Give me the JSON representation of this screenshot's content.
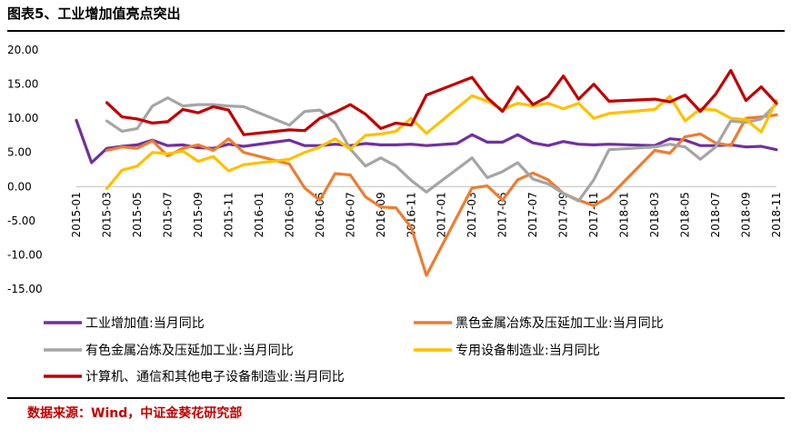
{
  "header": {
    "title": "图表5、工业增加值亮点突出"
  },
  "footer": {
    "source": "数据来源：Wind，中证金葵花研究部"
  },
  "chart_data": {
    "type": "line",
    "ylim": [
      -15,
      20
    ],
    "yticks": [
      "20.00",
      "15.00",
      "10.00",
      "5.00",
      "0.00",
      "-5.00",
      "-10.00",
      "-15.00"
    ],
    "x": [
      "2015-01",
      "2015-02",
      "2015-03",
      "2015-04",
      "2015-05",
      "2015-06",
      "2015-07",
      "2015-08",
      "2015-09",
      "2015-10",
      "2015-11",
      "2015-12",
      "2016-01",
      "2016-02",
      "2016-03",
      "2016-04",
      "2016-05",
      "2016-06",
      "2016-07",
      "2016-08",
      "2016-09",
      "2016-10",
      "2016-11",
      "2016-12",
      "2017-01",
      "2017-02",
      "2017-03",
      "2017-04",
      "2017-05",
      "2017-06",
      "2017-07",
      "2017-08",
      "2017-09",
      "2017-10",
      "2017-11",
      "2017-12",
      "2018-01",
      "2018-02",
      "2018-03",
      "2018-04",
      "2018-05",
      "2018-06",
      "2018-07",
      "2018-08",
      "2018-09",
      "2018-10",
      "2018-11"
    ],
    "xticklabels": [
      "2015-01",
      "2015-03",
      "2015-05",
      "2015-07",
      "2015-09",
      "2015-11",
      "2016-01",
      "2016-03",
      "2016-05",
      "2016-07",
      "2016-09",
      "2016-11",
      "2017-01",
      "2017-03",
      "2017-05",
      "2017-07",
      "2017-09",
      "2017-11",
      "2018-01",
      "2018-03",
      "2018-05",
      "2018-07",
      "2018-09",
      "2018-11"
    ],
    "series": [
      {
        "name": "工业增加值:当月同比",
        "color": "#7030a0",
        "values": [
          9.7,
          3.5,
          5.6,
          5.9,
          6.1,
          6.8,
          6.0,
          6.1,
          5.7,
          5.6,
          6.2,
          5.9,
          null,
          null,
          6.8,
          6.0,
          6.0,
          6.2,
          6.0,
          6.3,
          6.1,
          6.1,
          6.2,
          6.0,
          null,
          6.3,
          7.6,
          6.5,
          6.5,
          7.6,
          6.4,
          6.0,
          6.6,
          6.2,
          6.1,
          6.2,
          null,
          null,
          6.0,
          7.0,
          6.8,
          6.0,
          6.0,
          6.1,
          5.8,
          5.9,
          5.4
        ]
      },
      {
        "name": "黑色金属冶炼及压延加工业:当月同比",
        "color": "#ed7d31",
        "values": [
          null,
          null,
          5.3,
          5.8,
          5.6,
          6.7,
          4.5,
          5.6,
          6.1,
          5.3,
          7.0,
          5.0,
          null,
          null,
          3.3,
          -0.2,
          -2.0,
          1.9,
          1.7,
          -1.5,
          -3.0,
          -3.1,
          -6.0,
          -13.0,
          null,
          null,
          -0.2,
          0.1,
          -2.0,
          1.0,
          2.0,
          1.0,
          -1.0,
          -2.0,
          -2.8,
          -1.5,
          null,
          null,
          5.3,
          4.9,
          7.3,
          7.7,
          6.4,
          6.0,
          10.0,
          10.2,
          10.5
        ]
      },
      {
        "name": "有色金属冶炼及压延加工业:当月同比",
        "color": "#a5a5a5",
        "values": [
          null,
          null,
          9.6,
          8.1,
          8.5,
          11.8,
          13.0,
          11.8,
          12.0,
          12.0,
          11.8,
          11.7,
          null,
          null,
          9.0,
          11.0,
          11.2,
          9.3,
          5.5,
          3.0,
          4.2,
          3.0,
          0.9,
          -0.8,
          null,
          null,
          4.2,
          1.3,
          2.2,
          3.5,
          1.1,
          0.4,
          -1.0,
          -2.1,
          1.0,
          5.4,
          null,
          null,
          5.8,
          6.2,
          5.8,
          4.0,
          5.8,
          9.6,
          9.4,
          9.9,
          12.1
        ]
      },
      {
        "name": "专用设备制造业:当月同比",
        "color": "#ffc000",
        "values": [
          null,
          null,
          -0.3,
          2.4,
          3.0,
          5.0,
          4.8,
          5.2,
          3.7,
          4.4,
          2.3,
          3.2,
          null,
          null,
          4.0,
          5.0,
          5.8,
          7.0,
          5.5,
          7.5,
          7.7,
          8.1,
          10.0,
          7.8,
          null,
          null,
          13.3,
          12.5,
          11.3,
          12.2,
          11.8,
          12.2,
          11.4,
          12.2,
          10.0,
          10.7,
          null,
          null,
          11.3,
          13.2,
          9.6,
          11.4,
          11.2,
          10.0,
          9.8,
          8.0,
          12.6
        ]
      },
      {
        "name": "计算机、通信和其他电子设备制造业:当月同比",
        "color": "#c00000",
        "values": [
          null,
          null,
          12.3,
          10.2,
          9.9,
          9.3,
          9.5,
          11.3,
          10.8,
          11.7,
          11.2,
          7.6,
          null,
          null,
          8.3,
          8.2,
          10.0,
          10.9,
          12.0,
          10.6,
          8.5,
          9.3,
          9.0,
          13.4,
          null,
          null,
          16.0,
          13.0,
          11.0,
          14.6,
          12.0,
          13.2,
          16.2,
          12.8,
          15.0,
          12.5,
          null,
          null,
          12.8,
          12.4,
          13.4,
          11.0,
          13.5,
          17.0,
          12.6,
          14.6,
          12.2
        ]
      }
    ]
  }
}
